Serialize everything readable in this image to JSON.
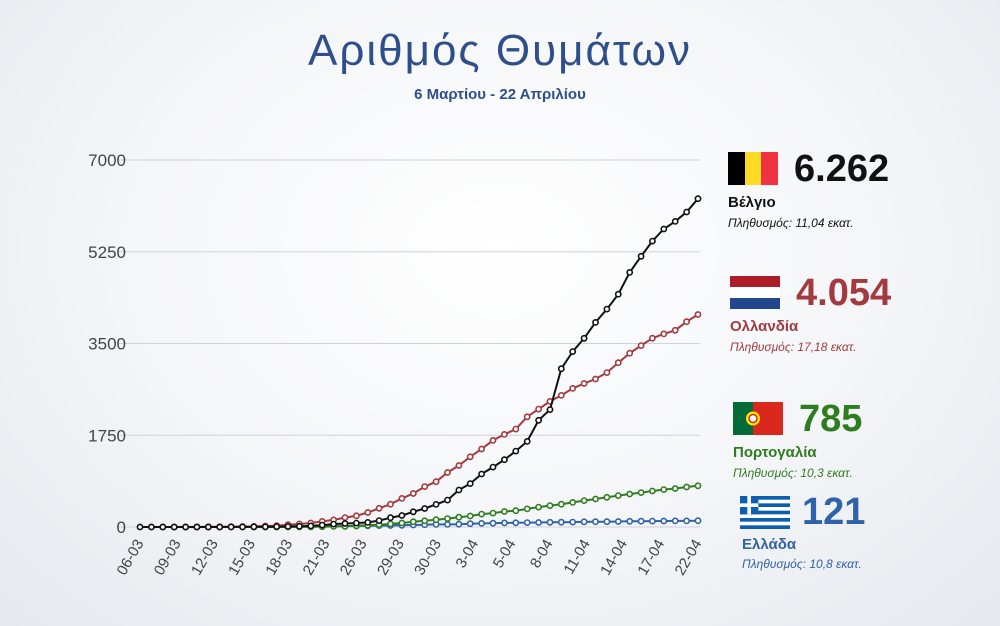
{
  "title": "Αριθμός Θυμάτων",
  "subtitle": "6 Μαρτίου - 22 Απριλίου",
  "chart_data": {
    "type": "line",
    "ylim": [
      0,
      7000
    ],
    "yticks": [
      0,
      1750,
      3500,
      5250,
      7000
    ],
    "ytick_labels": [
      "0",
      "1750",
      "3500",
      "5250",
      "7000"
    ],
    "x_tick_labels": [
      "06-03",
      "09-03",
      "12-03",
      "15-03",
      "18-03",
      "21-03",
      "26-03",
      "29-03",
      "30-03",
      "3-04",
      "5-04",
      "8-04",
      "11-04",
      "14-04",
      "17-04",
      "22-04"
    ],
    "grid": true,
    "series": [
      {
        "name": "Βέλγιο",
        "color": "#111111",
        "values": [
          0,
          0,
          0,
          0,
          0,
          0,
          0,
          0,
          1,
          2,
          3,
          4,
          7,
          10,
          14,
          21,
          37,
          56,
          67,
          75,
          88,
          122,
          178,
          220,
          289,
          353,
          431,
          513,
          705,
          828,
          1011,
          1143,
          1283,
          1447,
          1632,
          2035,
          2240,
          3019,
          3346,
          3600,
          3903,
          4157,
          4440,
          4857,
          5163,
          5453,
          5683,
          5828,
          6009,
          6262
        ],
        "marker": true
      },
      {
        "name": "Ολλανδία",
        "color": "#a33a3f",
        "values": [
          0,
          0,
          0,
          0,
          1,
          3,
          4,
          5,
          10,
          12,
          20,
          24,
          43,
          58,
          76,
          106,
          136,
          179,
          213,
          276,
          356,
          434,
          546,
          639,
          771,
          864,
          1039,
          1173,
          1339,
          1487,
          1651,
          1766,
          1867,
          2101,
          2248,
          2396,
          2511,
          2643,
          2737,
          2823,
          2945,
          3134,
          3315,
          3459,
          3601,
          3684,
          3751,
          3916,
          4054
        ],
        "marker": true
      },
      {
        "name": "Πορτογαλία",
        "color": "#2e7d1f",
        "values": [
          0,
          0,
          0,
          0,
          0,
          0,
          0,
          0,
          0,
          0,
          1,
          2,
          3,
          6,
          12,
          14,
          23,
          33,
          43,
          60,
          76,
          100,
          119,
          140,
          160,
          187,
          209,
          246,
          266,
          295,
          311,
          345,
          380,
          409,
          435,
          470,
          504,
          535,
          567,
          599,
          629,
          657,
          687,
          714,
          735,
          762,
          785
        ],
        "marker": true
      },
      {
        "name": "Ελλάδα",
        "color": "#2f62a8",
        "values": [
          0,
          0,
          0,
          0,
          0,
          0,
          1,
          1,
          1,
          3,
          3,
          4,
          5,
          6,
          13,
          15,
          17,
          20,
          22,
          26,
          28,
          32,
          38,
          43,
          49,
          50,
          53,
          63,
          68,
          73,
          79,
          81,
          83,
          86,
          90,
          91,
          93,
          99,
          101,
          102,
          105,
          108,
          110,
          113,
          114,
          116,
          117,
          121
        ],
        "marker": true
      }
    ]
  },
  "legend": [
    {
      "id": "belgium",
      "value": "6.262",
      "name": "Βέλγιο",
      "population": "Πληθυσμός: 11,04 εκατ.",
      "color": "#111111",
      "pop_color": "#111111",
      "flag_icon": "belgium-flag-icon"
    },
    {
      "id": "netherlands",
      "value": "4.054",
      "name": "Ολλανδία",
      "population": "Πληθυσμός: 17,18 εκατ.",
      "color": "#a33a3f",
      "pop_color": "#a33a3f",
      "flag_icon": "netherlands-flag-icon"
    },
    {
      "id": "portugal",
      "value": "785",
      "name": "Πορτογαλία",
      "population": "Πληθυσμός: 10,3 εκατ.",
      "color": "#2e7d1f",
      "pop_color": "#2e7d1f",
      "flag_icon": "portugal-flag-icon"
    },
    {
      "id": "greece",
      "value": "121",
      "name": "Ελλάδα",
      "population": "Πληθυσμός: 10,8 εκατ.",
      "color": "#2f62a8",
      "pop_color": "#2f62a8",
      "flag_icon": "greece-flag-icon"
    }
  ]
}
